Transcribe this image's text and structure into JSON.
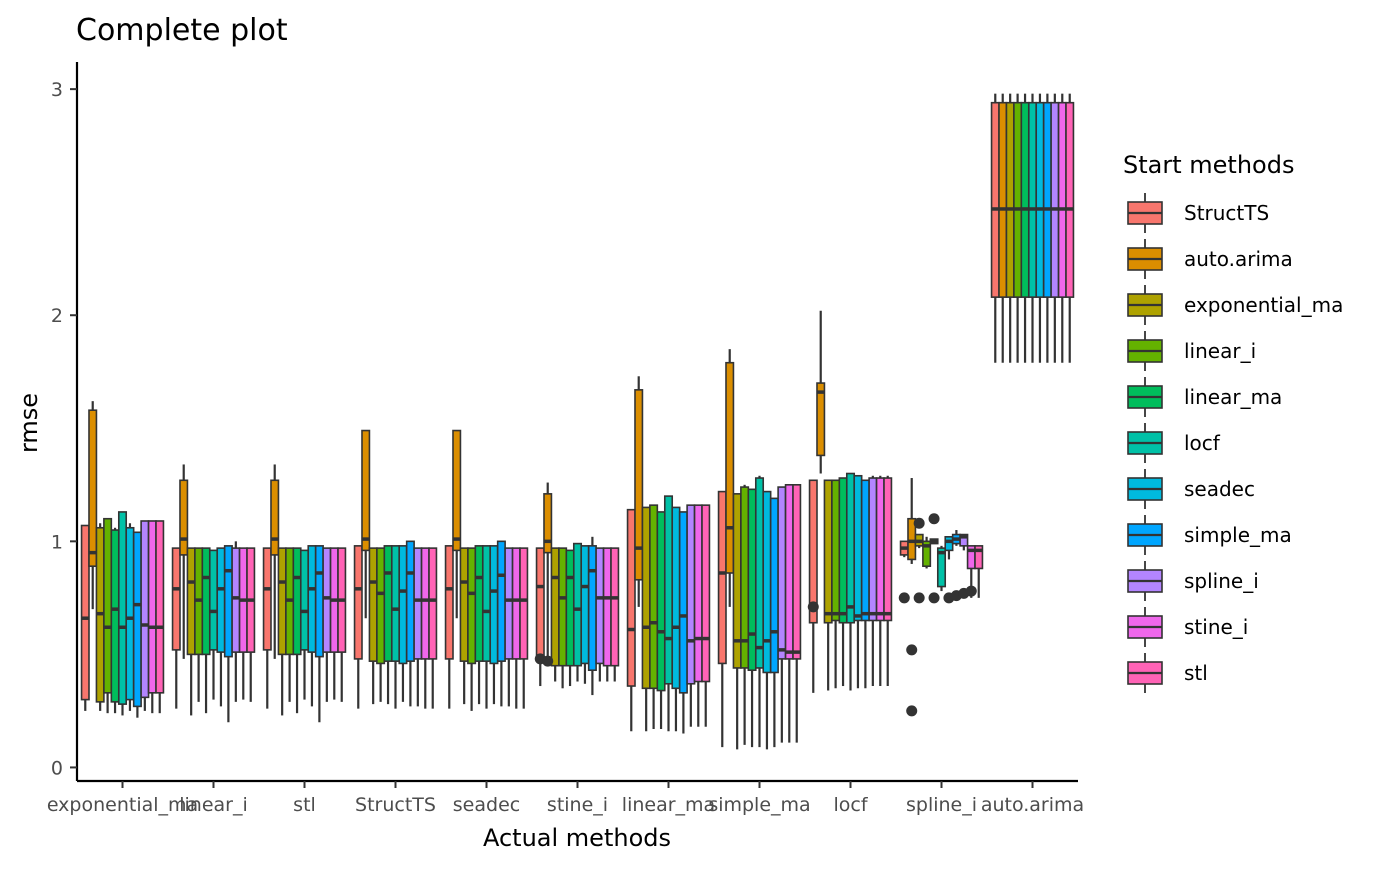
{
  "chart_data": {
    "type": "boxplot",
    "title": "Complete plot",
    "xlabel": "Actual methods",
    "ylabel": "rmse",
    "ylim": [
      -0.06,
      3.12
    ],
    "yticks": [
      0,
      1,
      2,
      3
    ],
    "grid": false,
    "legend": {
      "title": "Start methods",
      "position": "right"
    },
    "categories": [
      "exponential_ma",
      "linear_i",
      "stl",
      "StructTS",
      "seadec",
      "stine_i",
      "linear_ma",
      "simple_ma",
      "locf",
      "spline_i",
      "auto.arima"
    ],
    "series": [
      {
        "name": "StructTS",
        "color": "#F8766D"
      },
      {
        "name": "auto.arima",
        "color": "#DB8E00"
      },
      {
        "name": "exponential_ma",
        "color": "#AEA200"
      },
      {
        "name": "linear_i",
        "color": "#64B200"
      },
      {
        "name": "linear_ma",
        "color": "#00BD5C"
      },
      {
        "name": "locf",
        "color": "#00C1A7"
      },
      {
        "name": "seadec",
        "color": "#00BADE"
      },
      {
        "name": "simple_ma",
        "color": "#00A6FF"
      },
      {
        "name": "spline_i",
        "color": "#B385FF"
      },
      {
        "name": "stine_i",
        "color": "#EF67EB"
      },
      {
        "name": "stl",
        "color": "#FF63B6"
      }
    ],
    "boxes": [
      {
        "category": "exponential_ma",
        "stats": [
          [
            0.25,
            0.3,
            0.66,
            1.07,
            1.07
          ],
          [
            0.7,
            0.89,
            0.95,
            1.58,
            1.62
          ],
          [
            0.25,
            0.29,
            0.68,
            1.06,
            1.08
          ],
          [
            0.24,
            0.33,
            0.62,
            1.1,
            1.1
          ],
          [
            0.24,
            0.29,
            0.7,
            1.05,
            1.06
          ],
          [
            0.23,
            0.28,
            0.62,
            1.13,
            1.13
          ],
          [
            0.25,
            0.3,
            0.66,
            1.06,
            1.08
          ],
          [
            0.22,
            0.27,
            0.72,
            1.04,
            1.04
          ],
          [
            0.25,
            0.31,
            0.63,
            1.09,
            1.09
          ],
          [
            0.24,
            0.33,
            0.62,
            1.09,
            1.09
          ],
          [
            0.24,
            0.33,
            0.62,
            1.09,
            1.09
          ]
        ]
      },
      {
        "category": "linear_i",
        "stats": [
          [
            0.26,
            0.52,
            0.79,
            0.97,
            0.97
          ],
          [
            0.48,
            0.94,
            1.01,
            1.27,
            1.34
          ],
          [
            0.23,
            0.5,
            0.82,
            0.97,
            0.97
          ],
          [
            0.29,
            0.5,
            0.74,
            0.97,
            0.97
          ],
          [
            0.24,
            0.5,
            0.84,
            0.97,
            0.97
          ],
          [
            0.3,
            0.52,
            0.69,
            0.96,
            0.96
          ],
          [
            0.27,
            0.51,
            0.79,
            0.97,
            0.97
          ],
          [
            0.2,
            0.49,
            0.87,
            0.98,
            0.98
          ],
          [
            0.29,
            0.51,
            0.75,
            0.97,
            1.0
          ],
          [
            0.3,
            0.51,
            0.74,
            0.97,
            0.97
          ],
          [
            0.29,
            0.51,
            0.74,
            0.97,
            0.97
          ]
        ]
      },
      {
        "category": "stl",
        "stats": [
          [
            0.26,
            0.52,
            0.79,
            0.97,
            0.97
          ],
          [
            0.48,
            0.94,
            1.01,
            1.27,
            1.34
          ],
          [
            0.23,
            0.5,
            0.82,
            0.97,
            0.97
          ],
          [
            0.29,
            0.5,
            0.74,
            0.97,
            0.97
          ],
          [
            0.24,
            0.5,
            0.84,
            0.97,
            0.97
          ],
          [
            0.3,
            0.52,
            0.69,
            0.96,
            0.96
          ],
          [
            0.27,
            0.51,
            0.79,
            0.98,
            0.98
          ],
          [
            0.2,
            0.49,
            0.86,
            0.98,
            0.98
          ],
          [
            0.29,
            0.51,
            0.75,
            0.97,
            0.97
          ],
          [
            0.3,
            0.51,
            0.74,
            0.97,
            0.97
          ],
          [
            0.29,
            0.51,
            0.74,
            0.97,
            0.97
          ]
        ]
      },
      {
        "category": "StructTS",
        "stats": [
          [
            0.26,
            0.48,
            0.79,
            0.98,
            0.98
          ],
          [
            0.66,
            0.96,
            1.01,
            1.49,
            1.49
          ],
          [
            0.28,
            0.47,
            0.82,
            0.97,
            0.97
          ],
          [
            0.29,
            0.46,
            0.77,
            0.97,
            0.97
          ],
          [
            0.28,
            0.47,
            0.86,
            0.98,
            0.98
          ],
          [
            0.26,
            0.47,
            0.7,
            0.98,
            0.98
          ],
          [
            0.29,
            0.46,
            0.78,
            0.98,
            0.98
          ],
          [
            0.27,
            0.47,
            0.86,
            1.0,
            1.0
          ],
          [
            0.27,
            0.48,
            0.74,
            0.97,
            0.97
          ],
          [
            0.26,
            0.48,
            0.74,
            0.97,
            0.97
          ],
          [
            0.26,
            0.48,
            0.74,
            0.97,
            0.97
          ]
        ]
      },
      {
        "category": "seadec",
        "stats": [
          [
            0.26,
            0.48,
            0.79,
            0.98,
            0.98
          ],
          [
            0.66,
            0.96,
            1.01,
            1.49,
            1.49
          ],
          [
            0.28,
            0.47,
            0.82,
            0.97,
            0.97
          ],
          [
            0.25,
            0.46,
            0.77,
            0.97,
            0.97
          ],
          [
            0.28,
            0.47,
            0.84,
            0.98,
            0.98
          ],
          [
            0.26,
            0.47,
            0.69,
            0.98,
            0.98
          ],
          [
            0.28,
            0.46,
            0.78,
            0.98,
            0.98
          ],
          [
            0.27,
            0.47,
            0.85,
            1.0,
            1.0
          ],
          [
            0.27,
            0.48,
            0.74,
            0.97,
            0.97
          ],
          [
            0.26,
            0.48,
            0.74,
            0.97,
            0.97
          ],
          [
            0.26,
            0.48,
            0.74,
            0.97,
            0.97
          ]
        ]
      },
      {
        "category": "stine_i",
        "stats": [
          [
            0.36,
            0.47,
            0.8,
            0.97,
            0.97
          ],
          [
            0.46,
            0.95,
            1.0,
            1.21,
            1.26
          ],
          [
            0.38,
            0.45,
            0.84,
            0.97,
            0.97
          ],
          [
            0.35,
            0.45,
            0.75,
            0.97,
            0.97
          ],
          [
            0.36,
            0.45,
            0.84,
            0.96,
            0.96
          ],
          [
            0.38,
            0.45,
            0.7,
            0.99,
            0.99
          ],
          [
            0.37,
            0.46,
            0.8,
            0.98,
            0.98
          ],
          [
            0.32,
            0.43,
            0.87,
            0.98,
            1.02
          ],
          [
            0.38,
            0.46,
            0.75,
            0.97,
            0.97
          ],
          [
            0.38,
            0.45,
            0.75,
            0.97,
            0.97
          ],
          [
            0.38,
            0.45,
            0.75,
            0.97,
            0.97
          ]
        ]
      },
      {
        "category": "linear_ma",
        "stats": [
          [
            0.16,
            0.36,
            0.61,
            1.14,
            1.14
          ],
          [
            0.71,
            0.83,
            0.97,
            1.67,
            1.73
          ],
          [
            0.16,
            0.35,
            0.62,
            1.15,
            1.15
          ],
          [
            0.17,
            0.35,
            0.64,
            1.16,
            1.16
          ],
          [
            0.17,
            0.34,
            0.6,
            1.13,
            1.13
          ],
          [
            0.16,
            0.37,
            0.57,
            1.2,
            1.2
          ],
          [
            0.16,
            0.35,
            0.62,
            1.15,
            1.15
          ],
          [
            0.15,
            0.33,
            0.67,
            1.13,
            1.13
          ],
          [
            0.18,
            0.37,
            0.56,
            1.16,
            1.16
          ],
          [
            0.18,
            0.38,
            0.57,
            1.16,
            1.16
          ],
          [
            0.18,
            0.38,
            0.57,
            1.16,
            1.16
          ]
        ]
      },
      {
        "category": "simple_ma",
        "stats": [
          [
            0.09,
            0.46,
            0.86,
            1.22,
            1.22
          ],
          [
            0.71,
            0.86,
            1.06,
            1.79,
            1.85
          ],
          [
            0.08,
            0.44,
            0.56,
            1.21,
            1.21
          ],
          [
            0.1,
            0.44,
            0.56,
            1.24,
            1.25
          ],
          [
            0.09,
            0.43,
            0.59,
            1.23,
            1.23
          ],
          [
            0.09,
            0.44,
            0.53,
            1.28,
            1.29
          ],
          [
            0.08,
            0.42,
            0.56,
            1.22,
            1.22
          ],
          [
            0.09,
            0.42,
            0.6,
            1.19,
            1.19
          ],
          [
            0.11,
            0.48,
            0.52,
            1.24,
            1.24
          ],
          [
            0.11,
            0.48,
            0.51,
            1.25,
            1.25
          ],
          [
            0.11,
            0.48,
            0.51,
            1.25,
            1.25
          ]
        ]
      },
      {
        "category": "locf",
        "stats": [
          [
            0.33,
            0.64,
            0.7,
            1.27,
            1.27
          ],
          [
            1.3,
            1.38,
            1.66,
            1.7,
            2.02
          ],
          [
            0.34,
            0.64,
            0.68,
            1.27,
            1.27
          ],
          [
            0.35,
            0.65,
            0.68,
            1.27,
            1.27
          ],
          [
            0.36,
            0.64,
            0.68,
            1.28,
            1.28
          ],
          [
            0.34,
            0.64,
            0.71,
            1.3,
            1.3
          ],
          [
            0.35,
            0.65,
            0.67,
            1.29,
            1.29
          ],
          [
            0.35,
            0.65,
            0.68,
            1.27,
            1.27
          ],
          [
            0.36,
            0.65,
            0.68,
            1.28,
            1.29
          ],
          [
            0.36,
            0.65,
            0.68,
            1.28,
            1.29
          ],
          [
            0.36,
            0.65,
            0.68,
            1.28,
            1.29
          ]
        ]
      },
      {
        "category": "spline_i",
        "stats": [
          [
            0.93,
            0.94,
            0.97,
            1.0,
            1.0
          ],
          [
            0.9,
            0.92,
            1.0,
            1.1,
            1.28
          ],
          [
            0.97,
            0.98,
            1.0,
            1.03,
            1.03
          ],
          [
            0.88,
            0.89,
            0.98,
            1.0,
            1.02
          ],
          [
            0.99,
            0.99,
            1.0,
            1.01,
            1.01
          ],
          [
            0.78,
            0.8,
            0.95,
            0.97,
            0.98
          ],
          [
            0.92,
            0.96,
            1.0,
            1.02,
            1.02
          ],
          [
            0.98,
            0.99,
            1.01,
            1.03,
            1.05
          ],
          [
            0.96,
            0.98,
            1.02,
            1.03,
            1.03
          ],
          [
            0.75,
            0.88,
            0.96,
            0.98,
            0.98
          ],
          [
            0.75,
            0.88,
            0.96,
            0.98,
            0.98
          ]
        ]
      },
      {
        "category": "auto.arima",
        "stats": [
          [
            1.79,
            2.08,
            2.47,
            2.94,
            2.98
          ],
          [
            1.79,
            2.08,
            2.47,
            2.94,
            2.98
          ],
          [
            1.79,
            2.08,
            2.47,
            2.94,
            2.98
          ],
          [
            1.79,
            2.08,
            2.47,
            2.94,
            2.98
          ],
          [
            1.79,
            2.08,
            2.47,
            2.94,
            2.98
          ],
          [
            1.79,
            2.08,
            2.47,
            2.94,
            2.98
          ],
          [
            1.79,
            2.08,
            2.47,
            2.94,
            2.98
          ],
          [
            1.79,
            2.08,
            2.47,
            2.94,
            2.98
          ],
          [
            1.79,
            2.08,
            2.47,
            2.94,
            2.98
          ],
          [
            1.79,
            2.08,
            2.47,
            2.94,
            2.98
          ],
          [
            1.79,
            2.08,
            2.47,
            2.94,
            2.98
          ]
        ]
      }
    ],
    "outliers": [
      {
        "category": "stine_i",
        "series": "StructTS",
        "values": [
          0.48
        ]
      },
      {
        "category": "stine_i",
        "series": "auto.arima",
        "values": [
          0.47
        ]
      },
      {
        "category": "locf",
        "series": "StructTS",
        "values": [
          0.71
        ]
      },
      {
        "category": "spline_i",
        "series": "StructTS",
        "values": [
          0.75
        ]
      },
      {
        "category": "spline_i",
        "series": "auto.arima",
        "values": [
          0.52,
          0.25
        ]
      },
      {
        "category": "spline_i",
        "series": "exponential_ma",
        "values": [
          0.75,
          1.08
        ]
      },
      {
        "category": "spline_i",
        "series": "linear_ma",
        "values": [
          0.75,
          1.1
        ]
      },
      {
        "category": "spline_i",
        "series": "seadec",
        "values": [
          0.75
        ]
      },
      {
        "category": "spline_i",
        "series": "simple_ma",
        "values": [
          0.76
        ]
      },
      {
        "category": "spline_i",
        "series": "spline_i",
        "values": [
          0.77
        ]
      },
      {
        "category": "spline_i",
        "series": "stine_i",
        "values": [
          0.78
        ]
      }
    ]
  }
}
